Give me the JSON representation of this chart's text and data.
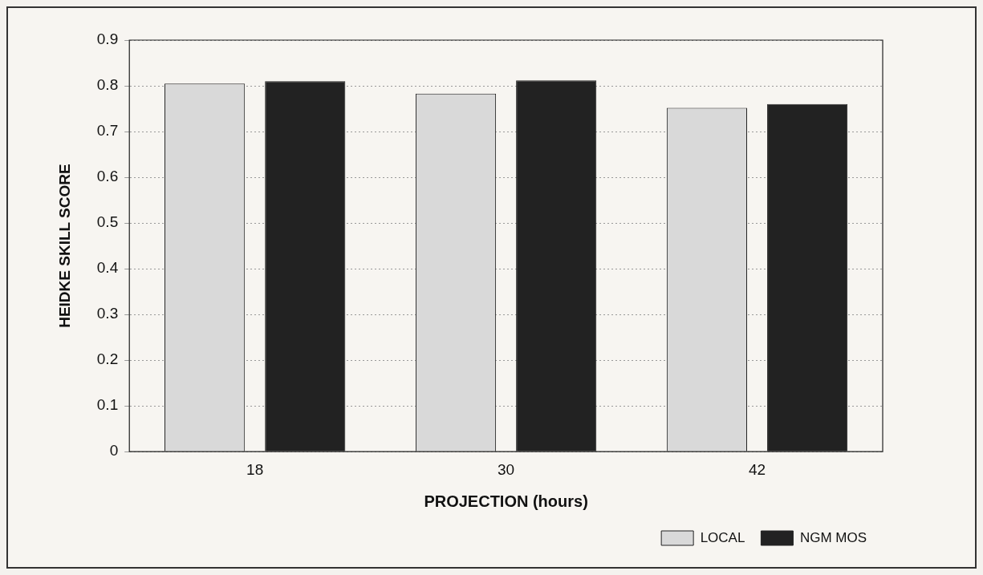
{
  "chart_data": {
    "type": "bar",
    "xlabel": "PROJECTION (hours)",
    "ylabel": "HEIDKE SKILL SCORE",
    "categories": [
      "18",
      "30",
      "42"
    ],
    "series": [
      {
        "name": "LOCAL",
        "color": "#d9d9d9",
        "values": [
          0.805,
          0.783,
          0.752
        ]
      },
      {
        "name": "NGM MOS",
        "color": "#222222",
        "values": [
          0.81,
          0.812,
          0.76
        ]
      }
    ],
    "ylim": [
      0,
      0.9
    ],
    "yticks": [
      0,
      0.1,
      0.2,
      0.3,
      0.4,
      0.5,
      0.6,
      0.7,
      0.8,
      0.9
    ],
    "grid": "y",
    "legend": "bottom right"
  }
}
